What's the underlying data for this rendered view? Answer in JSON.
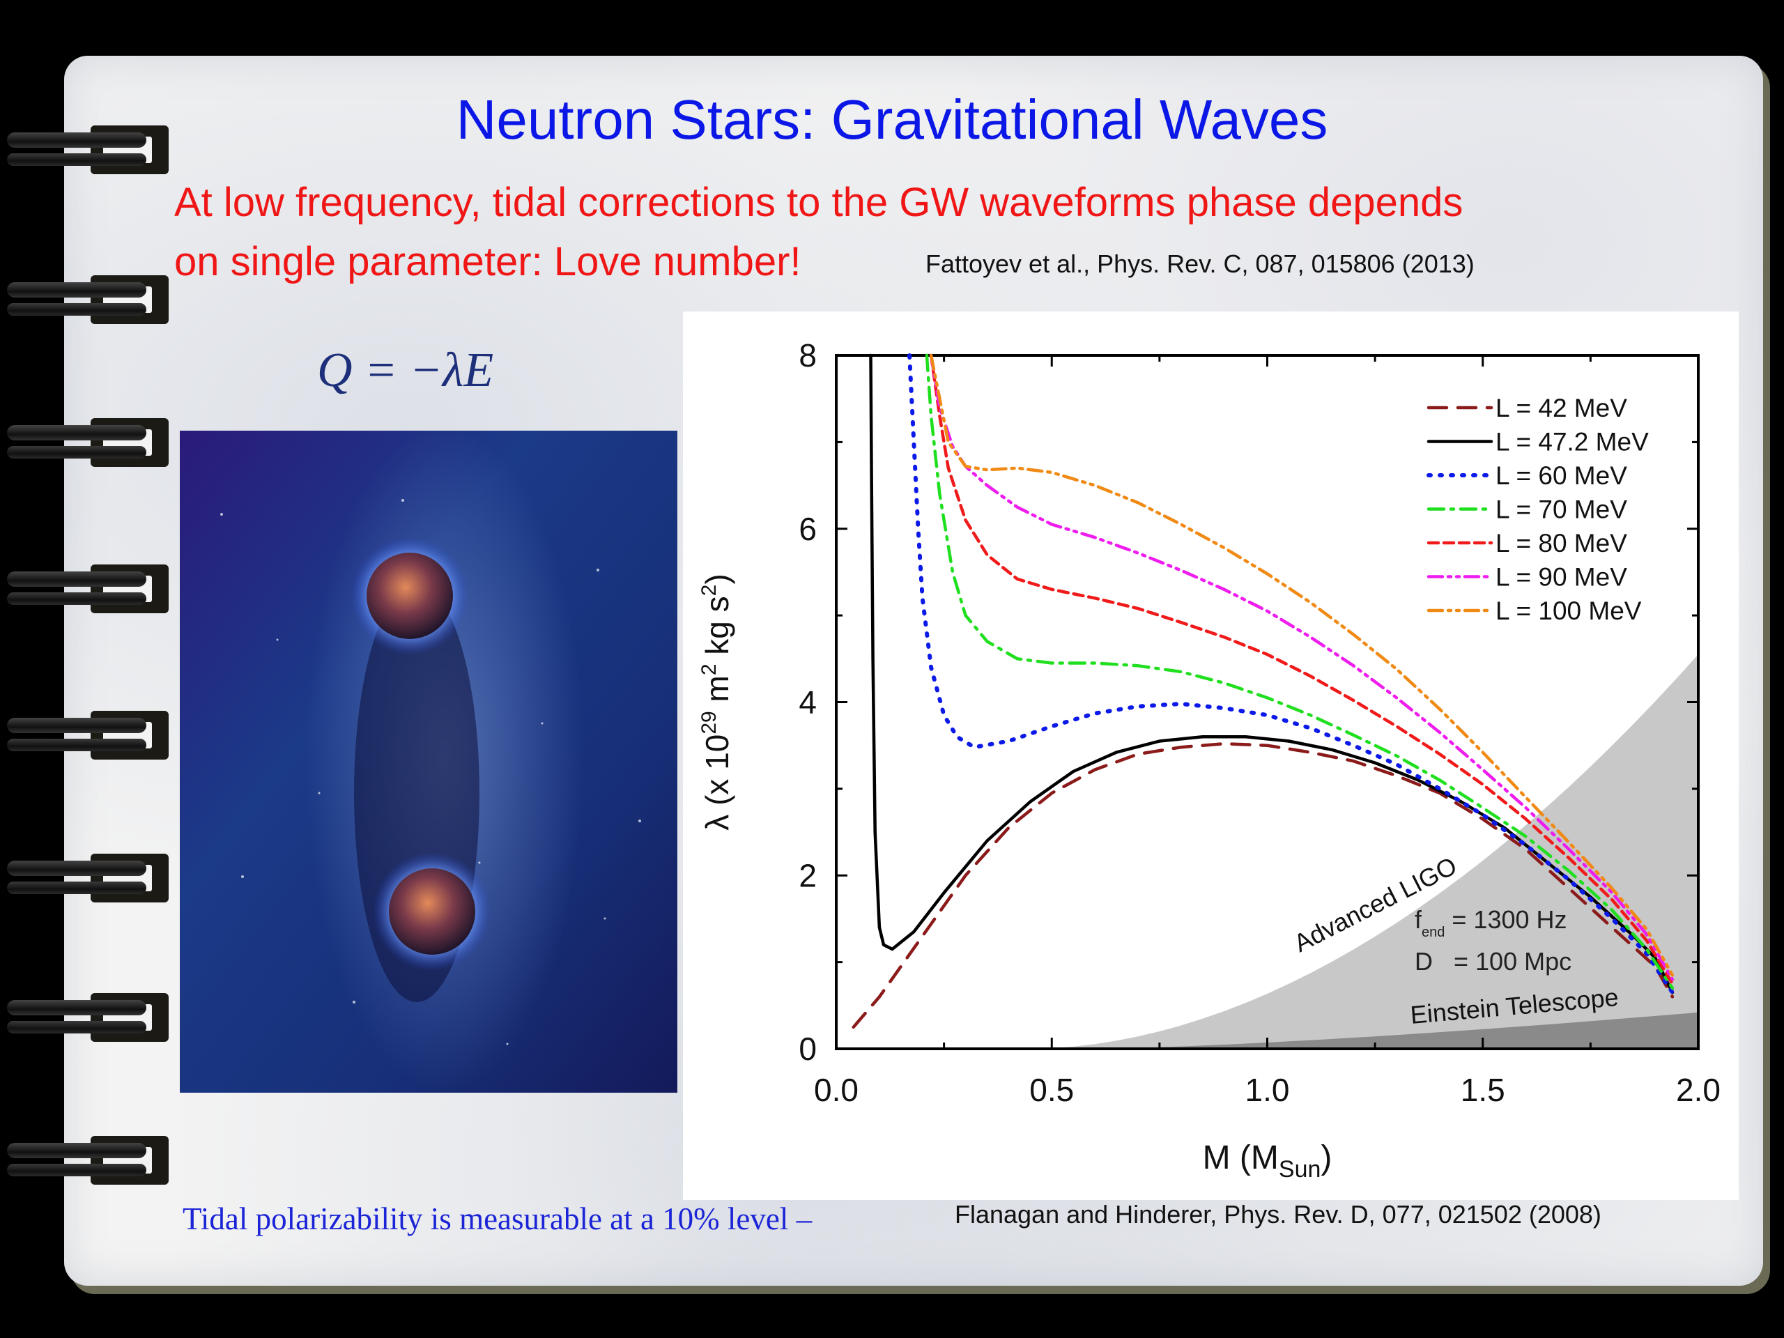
{
  "slide": {
    "title": "Neutron Stars: Gravitational Waves",
    "subtitle_line1": "At low frequency, tidal corrections to the GW waveforms phase depends",
    "subtitle_line2": "on single parameter: Love number!",
    "reference_top": "Fattoyev et al., Phys. Rev. C, 087, 015806 (2013)",
    "equation": "Q = −λE",
    "footer_left": "Tidal polarizability is measurable at a 10% level –",
    "footer_right": "Flanagan and Hinderer, Phys. Rev. D, 077, 021502 (2008)"
  },
  "colors": {
    "title": "#0a17e6",
    "subtitle": "#f01616",
    "footer_left": "#1b24d6"
  },
  "chart_data": {
    "type": "line",
    "xlabel": "M (M",
    "xlabel_sub": "Sun",
    "xlabel_close": ")",
    "ylabel": "λ (x 10",
    "ylabel_sup1": "29",
    "ylabel_mid": " m",
    "ylabel_sup2": "2",
    "ylabel_end": " kg s",
    "ylabel_sup3": "2",
    "ylabel_close": ")",
    "xlim": [
      0.0,
      2.0
    ],
    "ylim": [
      0,
      8
    ],
    "xticks": [
      "0.0",
      "0.5",
      "1.0",
      "1.5",
      "2.0"
    ],
    "yticks": [
      "0",
      "2",
      "4",
      "6",
      "8"
    ],
    "legend_position": "top-right",
    "series": [
      {
        "name": "L = 42    MeV",
        "color": "#8b1a1a",
        "dash": "dash",
        "points": [
          [
            0.04,
            0.25
          ],
          [
            0.1,
            0.6
          ],
          [
            0.2,
            1.3
          ],
          [
            0.3,
            2.0
          ],
          [
            0.4,
            2.55
          ],
          [
            0.5,
            2.95
          ],
          [
            0.6,
            3.22
          ],
          [
            0.7,
            3.4
          ],
          [
            0.8,
            3.48
          ],
          [
            0.9,
            3.52
          ],
          [
            1.0,
            3.5
          ],
          [
            1.1,
            3.42
          ],
          [
            1.2,
            3.32
          ],
          [
            1.3,
            3.15
          ],
          [
            1.4,
            2.95
          ],
          [
            1.5,
            2.65
          ],
          [
            1.6,
            2.3
          ],
          [
            1.7,
            1.85
          ],
          [
            1.8,
            1.4
          ],
          [
            1.9,
            0.95
          ],
          [
            1.94,
            0.6
          ]
        ]
      },
      {
        "name": "L = 47.2 MeV",
        "color": "#000000",
        "dash": "solid",
        "points": [
          [
            0.08,
            8.0
          ],
          [
            0.082,
            6.5
          ],
          [
            0.085,
            4.5
          ],
          [
            0.09,
            2.5
          ],
          [
            0.1,
            1.4
          ],
          [
            0.11,
            1.2
          ],
          [
            0.13,
            1.15
          ],
          [
            0.18,
            1.35
          ],
          [
            0.25,
            1.8
          ],
          [
            0.35,
            2.4
          ],
          [
            0.45,
            2.85
          ],
          [
            0.55,
            3.2
          ],
          [
            0.65,
            3.42
          ],
          [
            0.75,
            3.55
          ],
          [
            0.85,
            3.6
          ],
          [
            0.95,
            3.6
          ],
          [
            1.05,
            3.55
          ],
          [
            1.15,
            3.45
          ],
          [
            1.25,
            3.3
          ],
          [
            1.35,
            3.1
          ],
          [
            1.45,
            2.85
          ],
          [
            1.55,
            2.55
          ],
          [
            1.65,
            2.15
          ],
          [
            1.75,
            1.75
          ],
          [
            1.85,
            1.3
          ],
          [
            1.9,
            1.05
          ],
          [
            1.94,
            0.65
          ]
        ]
      },
      {
        "name": "L = 60    MeV",
        "color": "#0c1ae8",
        "dash": "dot",
        "points": [
          [
            0.17,
            8.0
          ],
          [
            0.18,
            7.0
          ],
          [
            0.19,
            6.0
          ],
          [
            0.2,
            5.2
          ],
          [
            0.22,
            4.4
          ],
          [
            0.25,
            3.85
          ],
          [
            0.28,
            3.6
          ],
          [
            0.32,
            3.48
          ],
          [
            0.4,
            3.55
          ],
          [
            0.5,
            3.72
          ],
          [
            0.6,
            3.87
          ],
          [
            0.7,
            3.95
          ],
          [
            0.8,
            3.98
          ],
          [
            0.9,
            3.93
          ],
          [
            1.0,
            3.85
          ],
          [
            1.1,
            3.7
          ],
          [
            1.2,
            3.5
          ],
          [
            1.3,
            3.28
          ],
          [
            1.4,
            3.0
          ],
          [
            1.5,
            2.7
          ],
          [
            1.6,
            2.35
          ],
          [
            1.7,
            1.95
          ],
          [
            1.8,
            1.5
          ],
          [
            1.88,
            1.1
          ],
          [
            1.94,
            0.65
          ]
        ]
      },
      {
        "name": "L = 70    MeV",
        "color": "#1fdf1f",
        "dash": "dashdot",
        "points": [
          [
            0.21,
            8.0
          ],
          [
            0.22,
            7.3
          ],
          [
            0.24,
            6.4
          ],
          [
            0.27,
            5.5
          ],
          [
            0.3,
            5.0
          ],
          [
            0.35,
            4.7
          ],
          [
            0.42,
            4.5
          ],
          [
            0.5,
            4.45
          ],
          [
            0.6,
            4.45
          ],
          [
            0.7,
            4.42
          ],
          [
            0.8,
            4.35
          ],
          [
            0.9,
            4.22
          ],
          [
            1.0,
            4.05
          ],
          [
            1.1,
            3.85
          ],
          [
            1.2,
            3.62
          ],
          [
            1.3,
            3.38
          ],
          [
            1.4,
            3.1
          ],
          [
            1.5,
            2.78
          ],
          [
            1.6,
            2.45
          ],
          [
            1.7,
            2.05
          ],
          [
            1.8,
            1.6
          ],
          [
            1.88,
            1.15
          ],
          [
            1.94,
            0.7
          ]
        ]
      },
      {
        "name": "L = 80    MeV",
        "color": "#f01a1a",
        "dash": "shortdash",
        "points": [
          [
            0.22,
            8.0
          ],
          [
            0.24,
            7.3
          ],
          [
            0.26,
            6.7
          ],
          [
            0.3,
            6.1
          ],
          [
            0.35,
            5.7
          ],
          [
            0.42,
            5.42
          ],
          [
            0.5,
            5.3
          ],
          [
            0.6,
            5.2
          ],
          [
            0.7,
            5.08
          ],
          [
            0.8,
            4.92
          ],
          [
            0.9,
            4.75
          ],
          [
            1.0,
            4.55
          ],
          [
            1.1,
            4.3
          ],
          [
            1.2,
            4.02
          ],
          [
            1.3,
            3.72
          ],
          [
            1.4,
            3.4
          ],
          [
            1.5,
            3.05
          ],
          [
            1.6,
            2.65
          ],
          [
            1.7,
            2.2
          ],
          [
            1.8,
            1.72
          ],
          [
            1.88,
            1.25
          ],
          [
            1.94,
            0.75
          ]
        ]
      },
      {
        "name": "L = 90    MeV",
        "color": "#ee1cee",
        "dash": "dashdotdot",
        "points": [
          [
            0.22,
            8.0
          ],
          [
            0.24,
            7.4
          ],
          [
            0.27,
            6.95
          ],
          [
            0.3,
            6.72
          ],
          [
            0.35,
            6.5
          ],
          [
            0.42,
            6.25
          ],
          [
            0.5,
            6.05
          ],
          [
            0.6,
            5.9
          ],
          [
            0.7,
            5.72
          ],
          [
            0.8,
            5.52
          ],
          [
            0.9,
            5.3
          ],
          [
            1.0,
            5.05
          ],
          [
            1.1,
            4.75
          ],
          [
            1.2,
            4.42
          ],
          [
            1.3,
            4.05
          ],
          [
            1.4,
            3.65
          ],
          [
            1.5,
            3.22
          ],
          [
            1.6,
            2.78
          ],
          [
            1.7,
            2.3
          ],
          [
            1.8,
            1.8
          ],
          [
            1.88,
            1.32
          ],
          [
            1.94,
            0.8
          ]
        ]
      },
      {
        "name": "L = 100  MeV",
        "color": "#f08a14",
        "dash": "dashdotdot",
        "points": [
          [
            0.22,
            8.0
          ],
          [
            0.24,
            7.5
          ],
          [
            0.26,
            7.0
          ],
          [
            0.3,
            6.72
          ],
          [
            0.35,
            6.68
          ],
          [
            0.42,
            6.7
          ],
          [
            0.5,
            6.65
          ],
          [
            0.6,
            6.5
          ],
          [
            0.7,
            6.3
          ],
          [
            0.8,
            6.05
          ],
          [
            0.9,
            5.78
          ],
          [
            1.0,
            5.48
          ],
          [
            1.1,
            5.15
          ],
          [
            1.2,
            4.78
          ],
          [
            1.3,
            4.38
          ],
          [
            1.4,
            3.92
          ],
          [
            1.5,
            3.42
          ],
          [
            1.6,
            2.9
          ],
          [
            1.7,
            2.38
          ],
          [
            1.8,
            1.85
          ],
          [
            1.88,
            1.38
          ],
          [
            1.94,
            0.85
          ]
        ]
      }
    ],
    "regions": [
      {
        "name": "Advanced LIGO",
        "color": "#c8c8c8"
      },
      {
        "name": "Einstein Telescope",
        "color": "#8a8a8a"
      }
    ],
    "annotations": {
      "fend_f": "f",
      "fend_sub": "end",
      "fend_rest": " = 1300 Hz",
      "distance": "D   = 100 Mpc"
    }
  }
}
